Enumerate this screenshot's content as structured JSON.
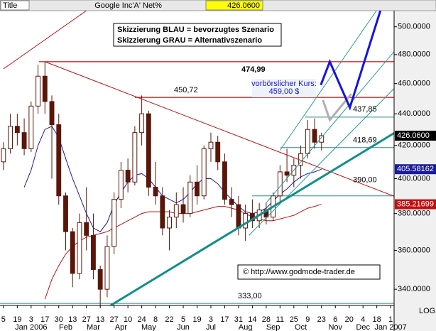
{
  "header": {
    "title": "Title",
    "symbol": "Google Inc'A'",
    "field": "Net%"
  },
  "chart_data": {
    "type": "candlestick",
    "log_scale": true,
    "axis_note": "LOG",
    "ylim": [
      332,
      512
    ],
    "yticks": [
      {
        "value": 340,
        "label": "340.0000"
      },
      {
        "value": 360,
        "label": "360.0000"
      },
      {
        "value": 380,
        "label": "380.0000"
      },
      {
        "value": 400,
        "label": "400.0000"
      },
      {
        "value": 420,
        "label": "420.0000"
      },
      {
        "value": 440,
        "label": "440.0000"
      },
      {
        "value": 460,
        "label": "460.0000"
      },
      {
        "value": 480,
        "label": "480.0000"
      },
      {
        "value": 500,
        "label": "500.0000"
      }
    ],
    "categories": [
      "5",
      null,
      "19",
      null,
      "3",
      null,
      "17",
      null,
      "30",
      null,
      "13",
      null,
      "27",
      null,
      "13",
      null,
      "27",
      null,
      "10",
      null,
      "24",
      null,
      "8",
      null,
      "22",
      null,
      "5",
      null,
      "19",
      null,
      "3",
      null,
      "17",
      null,
      "31",
      null,
      "14",
      null,
      "28",
      null,
      "11",
      null,
      "25",
      null,
      "9",
      null,
      "23",
      null,
      "6",
      null,
      "20",
      null,
      "4",
      null,
      "18",
      null,
      "1"
    ],
    "months": [
      null,
      null,
      null,
      null,
      "Jan 2006",
      null,
      null,
      null,
      null,
      "Feb",
      null,
      null,
      null,
      "Mar",
      null,
      null,
      null,
      "Apr",
      null,
      null,
      null,
      "May",
      null,
      null,
      null,
      null,
      "Jun",
      null,
      null,
      null,
      "Jul",
      null,
      null,
      null,
      null,
      "Aug",
      null,
      null,
      null,
      "Sep",
      null,
      null,
      null,
      "Oct",
      null,
      null,
      null,
      null,
      "Nov",
      null,
      null,
      null,
      "Dec",
      null,
      null,
      null,
      "Jan 2007"
    ],
    "candle_color": "#5a1608",
    "open": [
      410,
      418,
      432,
      428,
      418,
      445,
      465,
      448,
      433,
      390,
      370,
      348,
      375,
      368,
      350,
      340,
      362,
      388,
      405,
      398,
      428,
      440,
      395,
      390,
      372,
      378,
      385,
      380,
      398,
      390,
      418,
      422,
      410,
      388,
      385,
      372,
      380,
      376,
      382,
      378,
      390,
      404,
      402,
      408,
      415,
      430,
      422,
      null,
      null,
      null,
      null,
      null,
      null,
      null,
      null,
      null,
      null
    ],
    "high": [
      422,
      440,
      440,
      437,
      448,
      473,
      475,
      452,
      440,
      392,
      372,
      380,
      395,
      380,
      352,
      368,
      392,
      410,
      412,
      432,
      452,
      442,
      410,
      395,
      382,
      392,
      395,
      402,
      408,
      420,
      428,
      426,
      415,
      395,
      390,
      385,
      388,
      386,
      386,
      392,
      408,
      418,
      412,
      420,
      436,
      437,
      428,
      null,
      null,
      null,
      null,
      null,
      null,
      null,
      null,
      null,
      null
    ],
    "low": [
      405,
      415,
      420,
      414,
      416,
      440,
      440,
      400,
      385,
      360,
      341,
      345,
      360,
      345,
      332,
      336,
      358,
      383,
      392,
      396,
      420,
      390,
      385,
      368,
      360,
      372,
      375,
      378,
      385,
      388,
      410,
      405,
      385,
      378,
      368,
      365,
      372,
      372,
      374,
      376,
      386,
      398,
      395,
      400,
      412,
      418,
      417,
      null,
      null,
      null,
      null,
      null,
      null,
      null,
      null,
      null,
      null
    ],
    "close": [
      418,
      432,
      428,
      418,
      445,
      465,
      448,
      433,
      390,
      370,
      348,
      375,
      368,
      350,
      340,
      362,
      388,
      405,
      398,
      428,
      440,
      395,
      390,
      372,
      378,
      385,
      380,
      398,
      390,
      418,
      422,
      410,
      388,
      385,
      372,
      380,
      376,
      382,
      378,
      390,
      404,
      402,
      408,
      415,
      430,
      422,
      426.06,
      null,
      null,
      null,
      null,
      null,
      null,
      null,
      null,
      null,
      null
    ],
    "series": [
      {
        "color": "#1a1aa0",
        "values": [
          null,
          null,
          null,
          395,
          405,
          420,
          430,
          432,
          425,
          412,
          400,
          390,
          380,
          372,
          370,
          375,
          385,
          392,
          398,
          402,
          403,
          400,
          395,
          390,
          388,
          386,
          388,
          392,
          397,
          400,
          400,
          397,
          392,
          388,
          384,
          381,
          380,
          381,
          383,
          387,
          391,
          394,
          398,
          401,
          403,
          404,
          405.58162,
          null,
          null,
          null,
          null,
          null,
          null,
          null,
          null,
          null,
          null
        ]
      },
      {
        "color": "#c01010",
        "values": [
          null,
          null,
          null,
          null,
          null,
          null,
          335,
          345,
          352,
          358,
          362,
          365,
          367,
          368,
          369,
          370,
          372,
          374,
          376,
          378,
          380,
          381,
          381,
          381,
          381,
          380,
          380,
          380,
          381,
          382,
          383,
          384,
          384,
          383,
          382,
          380,
          378,
          377,
          376,
          376,
          377,
          378,
          379,
          381,
          383,
          384,
          385.21699,
          null,
          null,
          null,
          null,
          null,
          null,
          null,
          null,
          null,
          null
        ]
      }
    ],
    "badges": {
      "values": [
        426.06,
        405.58162,
        385.21699
      ],
      "value_labels": [
        "426.0600",
        "405.58162",
        "385.21699"
      ],
      "colors": [
        "#000000",
        "#1a1aa0",
        "#c01010"
      ]
    },
    "levels": {
      "values": [
        474.99,
        450.72,
        437.85,
        418.69,
        390,
        333
      ],
      "value_labels": [
        "474,99",
        "450,72",
        "437,85",
        "418,69",
        "390,00",
        "333,00"
      ],
      "colors": [
        "#c01010",
        "#c01010",
        "#2a8a8a",
        "#2a8a8a",
        "#2a8a8a",
        "#2a8a8a"
      ]
    },
    "trend_lines": [
      {
        "color": "#c01010",
        "width": 1,
        "points": [
          [
            6,
            474.99
          ],
          [
            57,
            389
          ]
        ]
      },
      {
        "color": "#c01010",
        "width": 1,
        "points": [
          [
            0,
            470
          ],
          [
            12,
            512
          ]
        ]
      },
      {
        "color": "#10908a",
        "width": 3,
        "points": [
          [
            15.5,
            332
          ],
          [
            57,
            429
          ]
        ]
      },
      {
        "color": "#2a9a9a",
        "width": 1,
        "points": [
          [
            35.5,
            368
          ],
          [
            57,
            459
          ]
        ]
      },
      {
        "color": "#2a9a9a",
        "width": 1,
        "points": [
          [
            38,
            386
          ],
          [
            57,
            485
          ]
        ]
      },
      {
        "color": "#2a9a9a",
        "width": 1,
        "points": [
          [
            40,
            417
          ],
          [
            55,
            520
          ]
        ]
      },
      {
        "color": "#b0b0b0",
        "width": 3,
        "points": [
          [
            46.2,
            449
          ],
          [
            47.2,
            436
          ],
          [
            50.3,
            453
          ]
        ]
      },
      {
        "color": "#1414e0",
        "width": 3,
        "points": [
          [
            45.9,
            459
          ],
          [
            47.2,
            475
          ],
          [
            50.1,
            444
          ],
          [
            55,
            520
          ]
        ]
      }
    ],
    "notes": [
      "Skizzierung BLAU = bevorzugtes Szenario",
      "Skizzierung GRAU = Alternativszenario"
    ],
    "annotation": [
      "vorbörslicher Kurs:",
      "459,00 $"
    ],
    "copyright": "© http://www.godmode-trader.de"
  }
}
